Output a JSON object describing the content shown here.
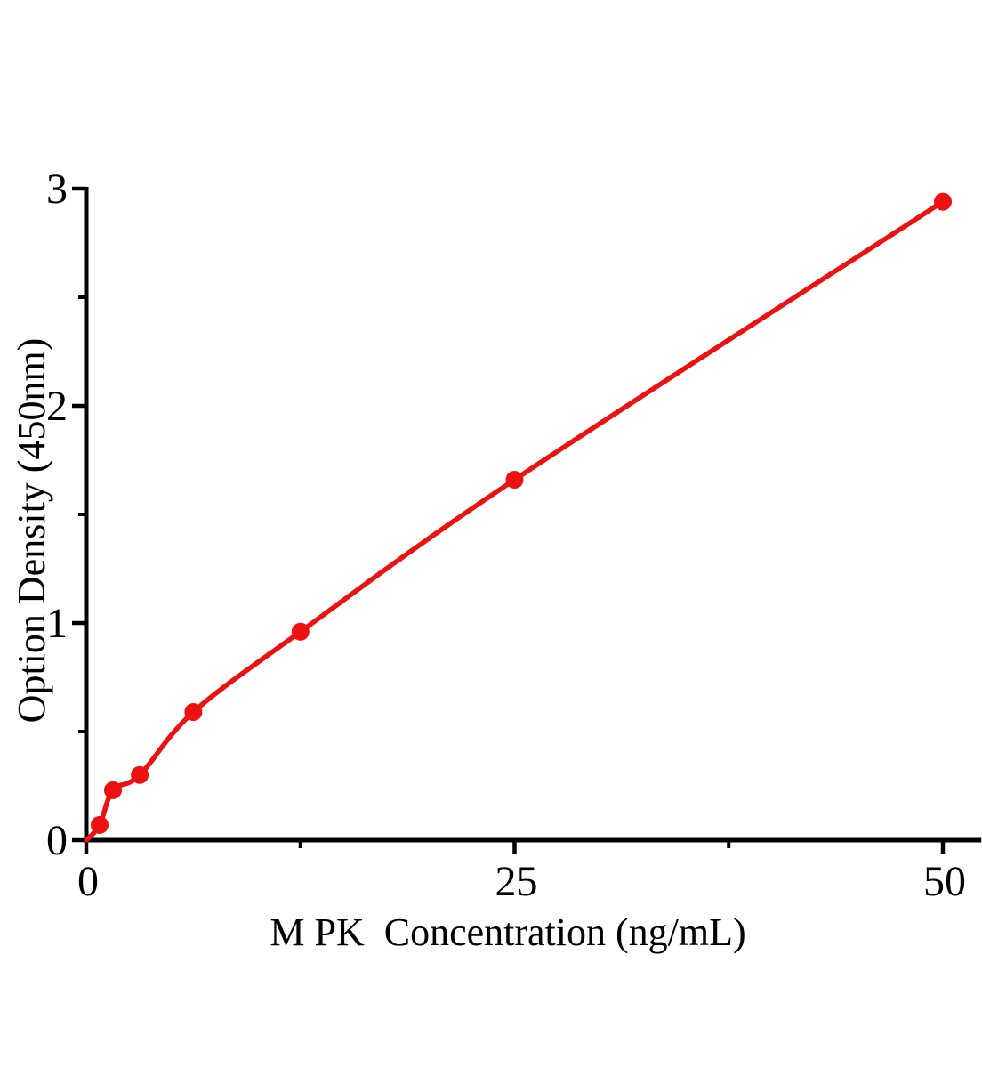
{
  "figure": {
    "background": "#ffffff",
    "accent_color": "#EE1111",
    "axis_color": "#000000",
    "text_color": "#000000"
  },
  "chart_data": {
    "type": "line",
    "title": "",
    "xlabel": "M PK  Concentration (ng/mL)",
    "ylabel": "Option Density (450nm)",
    "x": [
      0.78,
      1.56,
      3.12,
      6.25,
      12.5,
      25,
      50
    ],
    "y": [
      0.07,
      0.23,
      0.3,
      0.59,
      0.96,
      1.66,
      2.94
    ],
    "curve_start": {
      "x": 0,
      "y": 0
    },
    "xlim": [
      0,
      52.2
    ],
    "ylim": [
      0,
      3
    ],
    "x_major_ticks": [
      0,
      25,
      50
    ],
    "x_minor_ticks": [
      12.5,
      37.5
    ],
    "y_major_ticks": [
      0,
      1,
      2,
      3
    ],
    "y_minor_ticks": [
      0.5,
      1.5,
      2.5
    ],
    "marker": "filled-circle",
    "marker_color": "#EE1111",
    "line_color": "#EE1111",
    "grid": false,
    "legend": null
  }
}
